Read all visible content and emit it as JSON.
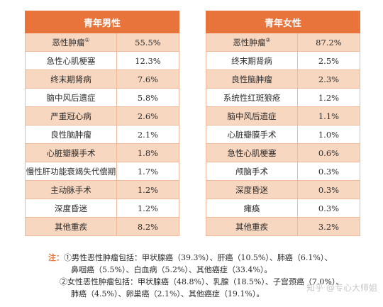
{
  "male": {
    "title": "青年男性",
    "rows": [
      {
        "name": "恶性肿瘤",
        "sup": "①",
        "value": "55.5%"
      },
      {
        "name": "急性心肌梗塞",
        "value": "12.3%"
      },
      {
        "name": "终末期肾病",
        "value": "7.6%"
      },
      {
        "name": "脑中风后遗症",
        "value": "5.8%"
      },
      {
        "name": "严重冠心病",
        "value": "2.6%"
      },
      {
        "name": "良性脑肿瘤",
        "value": "2.1%"
      },
      {
        "name": "心脏瓣膜手术",
        "value": "1.8%"
      },
      {
        "name": "慢性肝功能衰竭失代偿期",
        "value": "1.7%"
      },
      {
        "name": "主动脉手术",
        "value": "1.2%"
      },
      {
        "name": "深度昏迷",
        "value": "1.2%"
      },
      {
        "name": "其他重疾",
        "value": "8.2%"
      }
    ]
  },
  "female": {
    "title": "青年女性",
    "rows": [
      {
        "name": "恶性肿瘤",
        "sup": "②",
        "value": "87.2%"
      },
      {
        "name": "终末期肾病",
        "value": "2.5%"
      },
      {
        "name": "良性脑肿瘤",
        "value": "2.3%"
      },
      {
        "name": "系统性红斑狼疮",
        "value": "1.2%"
      },
      {
        "name": "脑中风后遗症",
        "value": "1.1%"
      },
      {
        "name": "心脏瓣膜手术",
        "value": "1.0%"
      },
      {
        "name": "急性心肌梗塞",
        "value": "0.6%"
      },
      {
        "name": "颅脑手术",
        "value": "0.3%"
      },
      {
        "name": "深度昏迷",
        "value": "0.3%"
      },
      {
        "name": "瘫痪",
        "value": "0.3%"
      },
      {
        "name": "其他重疾",
        "value": "3.2%"
      }
    ]
  },
  "notes": {
    "label": "注：",
    "male_line1": "①男性恶性肿瘤包括：甲状腺癌（39.3%）、肝癌（10.5%）、肺癌（6.1%）、",
    "male_line2": "鼻咽癌（5.5%）、白血病（5.2%）、其他癌症（33.4%）。",
    "female_line1": "②女性恶性肿瘤包括：甲状腺癌（48.8%）、乳腺（18.5%）、子宫颈癌（7.0%）、",
    "female_line2": "肺癌（4.5%）、卵巢癌（2.1%）、其他癌症（19.1%）。"
  },
  "watermark": "知乎 @专心大师姐"
}
